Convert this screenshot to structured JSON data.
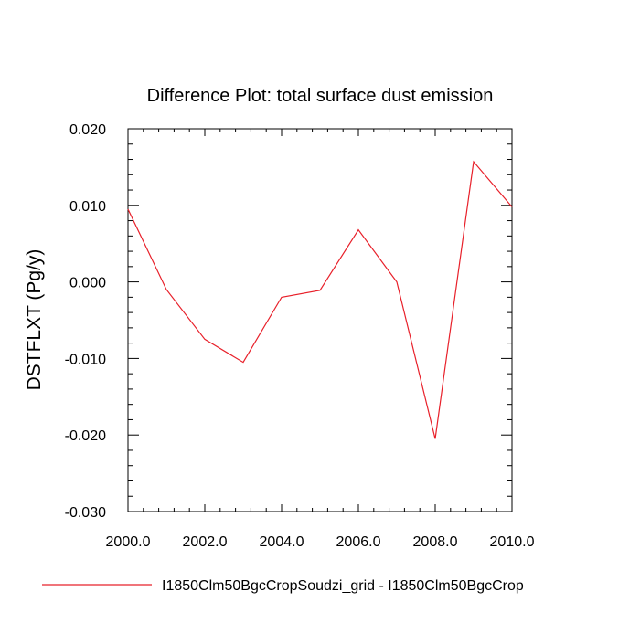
{
  "chart_data": {
    "type": "line",
    "title": "Difference Plot: total surface dust emission",
    "ylabel": "DSTFLXT  (Pg/y)",
    "xlabel": "",
    "xlim": [
      2000,
      2010
    ],
    "ylim": [
      -0.03,
      0.02
    ],
    "x_ticks": [
      2000,
      2002,
      2004,
      2006,
      2008,
      2010
    ],
    "x_tick_labels": [
      "2000.0",
      "2002.0",
      "2004.0",
      "2006.0",
      "2008.0",
      "2010.0"
    ],
    "y_ticks": [
      -0.03,
      -0.02,
      -0.01,
      0.0,
      0.01,
      0.02
    ],
    "y_tick_labels": [
      "-0.030",
      "-0.020",
      "-0.010",
      "0.000",
      "0.010",
      "0.020"
    ],
    "grid": false,
    "legend_position": "bottom",
    "series": [
      {
        "name": "I1850Clm50BgcCropSoudzi_grid - I1850Clm50BgcCrop",
        "color": "#e8202a",
        "x": [
          2000,
          2001,
          2002,
          2003,
          2004,
          2005,
          2006,
          2007,
          2008,
          2009,
          2010
        ],
        "values": [
          0.0095,
          -0.001,
          -0.0075,
          -0.0105,
          -0.002,
          -0.0011,
          0.0068,
          0.0,
          -0.0205,
          0.0157,
          0.0098
        ]
      }
    ]
  }
}
